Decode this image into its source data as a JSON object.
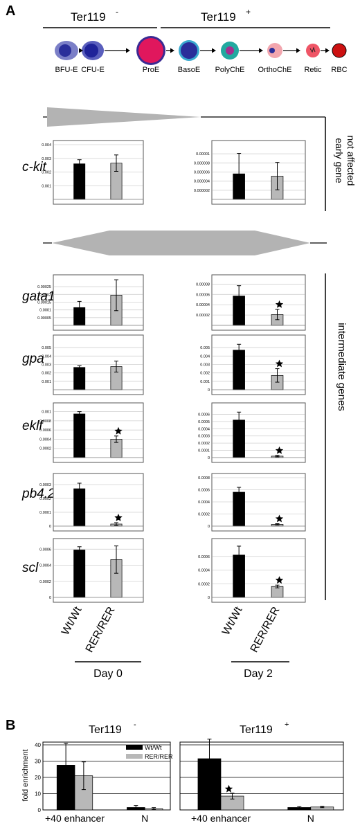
{
  "panel_a": {
    "label": "A",
    "ter_neg": "Ter119",
    "ter_neg_sup": "-",
    "ter_pos": "Ter119",
    "ter_pos_sup": "+",
    "stages": [
      "BFU-E",
      "CFU-E",
      "ProE",
      "BasoE",
      "PolyChE",
      "OrthoChE",
      "Retic",
      "RBC"
    ],
    "right_label_early_1": "early gene",
    "right_label_early_2": "not affected",
    "right_label_intermediate": "intermediate genes",
    "day0_label": "Day 0",
    "day2_label": "Day 2",
    "x_categories": [
      "Wt/Wt",
      "RER/RER"
    ]
  },
  "panel_b": {
    "label": "B",
    "ylabel": "fold enrichment",
    "left_title": "Ter119",
    "left_title_sup": "-",
    "right_title": "Ter119",
    "right_title_sup": "+",
    "legend": [
      "Wt/Wt",
      "RER/RER"
    ]
  },
  "colors": {
    "wt": "#000000",
    "rer": "#b8b8b8",
    "arrow": "#b3b3b3"
  },
  "chart_data": [
    {
      "type": "bar",
      "gene": "c-kit",
      "day": "Day 0",
      "categories": [
        "Wt/Wt",
        "RER/RER"
      ],
      "values": [
        0.0026,
        0.00265
      ],
      "errors": [
        0.0003,
        0.0006
      ],
      "ylim": [
        0,
        0.004
      ],
      "ticks": [
        "0.001",
        "0.002",
        "0.003",
        "0.004"
      ],
      "star": false
    },
    {
      "type": "bar",
      "gene": "c-kit",
      "day": "Day 2",
      "categories": [
        "Wt/Wt",
        "RER/RER"
      ],
      "values": [
        5.6e-06,
        5.1e-06
      ],
      "errors": [
        4.5e-06,
        3e-06
      ],
      "ylim": [
        0,
        1.2e-05
      ],
      "ticks": [
        "0.000002",
        "0.000004",
        "0.000006",
        "0.000008",
        "0.00001"
      ],
      "star": false
    },
    {
      "type": "bar",
      "gene": "gata1",
      "day": "Day 0",
      "categories": [
        "Wt/Wt",
        "RER/RER"
      ],
      "values": [
        0.000115,
        0.000195
      ],
      "errors": [
        4e-05,
        0.0001
      ],
      "ylim": [
        0,
        0.0003
      ],
      "ticks": [
        "0.00005",
        "0.0001",
        "0.00015",
        "0.0002",
        "0.00025"
      ],
      "star": false
    },
    {
      "type": "bar",
      "gene": "gata1",
      "day": "Day 2",
      "categories": [
        "Wt/Wt",
        "RER/RER"
      ],
      "values": [
        5.7e-05,
        2.1e-05
      ],
      "errors": [
        2e-05,
        1e-05
      ],
      "ylim": [
        0,
        9e-05
      ],
      "ticks": [
        "0.00002",
        "0.00004",
        "0.00006",
        "0.00008"
      ],
      "star": true
    },
    {
      "type": "bar",
      "gene": "gpa",
      "day": "Day 0",
      "categories": [
        "Wt/Wt",
        "RER/RER"
      ],
      "values": [
        0.00265,
        0.00275
      ],
      "errors": [
        0.0002,
        0.00065
      ],
      "ylim": [
        0,
        0.006
      ],
      "ticks": [
        "0.001",
        "0.002",
        "0.003",
        "0.004",
        "0.005"
      ],
      "star": false
    },
    {
      "type": "bar",
      "gene": "gpa",
      "day": "Day 2",
      "categories": [
        "Wt/Wt",
        "RER/RER"
      ],
      "values": [
        0.0047,
        0.0017
      ],
      "errors": [
        0.0007,
        0.0008
      ],
      "ylim": [
        0,
        0.006
      ],
      "ticks": [
        "0",
        "0.001",
        "0.002",
        "0.003",
        "0.004",
        "0.005"
      ],
      "star": true
    },
    {
      "type": "bar",
      "gene": "eklf",
      "day": "Day 0",
      "categories": [
        "Wt/Wt",
        "RER/RER"
      ],
      "values": [
        0.00095,
        0.0004
      ],
      "errors": [
        5e-05,
        7e-05
      ],
      "ylim": [
        0,
        0.0011
      ],
      "ticks": [
        "0.0002",
        "0.0004",
        "0.0006",
        "0.0008",
        "0.001"
      ],
      "star": true
    },
    {
      "type": "bar",
      "gene": "eklf",
      "day": "Day 2",
      "categories": [
        "Wt/Wt",
        "RER/RER"
      ],
      "values": [
        0.00052,
        2e-05
      ],
      "errors": [
        0.00011,
        1e-05
      ],
      "ylim": [
        0,
        0.0007
      ],
      "ticks": [
        "0",
        "0.0001",
        "0.0002",
        "0.0003",
        "0.0004",
        "0.0005",
        "0.0006"
      ],
      "star": true
    },
    {
      "type": "bar",
      "gene": "pb4.2",
      "day": "Day 0",
      "categories": [
        "Wt/Wt",
        "RER/RER"
      ],
      "values": [
        0.00027,
        1.5e-05
      ],
      "errors": [
        4e-05,
        1e-05
      ],
      "ylim": [
        0,
        0.00035
      ],
      "ticks": [
        "0",
        "0.0001",
        "0.0002",
        "0.0003"
      ],
      "star": true
    },
    {
      "type": "bar",
      "gene": "pb4.2",
      "day": "Day 2",
      "categories": [
        "Wt/Wt",
        "RER/RER"
      ],
      "values": [
        0.00056,
        3e-05
      ],
      "errors": [
        8e-05,
        1e-05
      ],
      "ylim": [
        0,
        0.0008
      ],
      "ticks": [
        "0",
        "0.0002",
        "0.0004",
        "0.0006",
        "0.0008"
      ],
      "star": true
    },
    {
      "type": "bar",
      "gene": "scl",
      "day": "Day 0",
      "categories": [
        "Wt/Wt",
        "RER/RER"
      ],
      "values": [
        0.00059,
        0.00047
      ],
      "errors": [
        4e-05,
        0.00017
      ],
      "ylim": [
        0,
        0.00068
      ],
      "ticks": [
        "0",
        "0.0002",
        "0.0004",
        "0.0006"
      ],
      "star": false
    },
    {
      "type": "bar",
      "gene": "scl",
      "day": "Day 2",
      "categories": [
        "Wt/Wt",
        "RER/RER"
      ],
      "values": [
        0.00062,
        0.00016
      ],
      "errors": [
        0.00013,
        2e-05
      ],
      "ylim": [
        0,
        0.0008
      ],
      "ticks": [
        "0",
        "0.0002",
        "0.0004",
        "0.0006"
      ],
      "star": true
    },
    {
      "type": "bar",
      "panel": "B",
      "title": "Ter119-",
      "categories": [
        "+40 enhancer",
        "N"
      ],
      "series": [
        {
          "name": "Wt/Wt",
          "values": [
            27.5,
            1.5
          ],
          "errors": [
            13.5,
            1.2
          ]
        },
        {
          "name": "RER/RER",
          "values": [
            21,
            0.8
          ],
          "errors": [
            8.5,
            0.6
          ]
        }
      ],
      "ylim": [
        0,
        40
      ],
      "ticks": [
        "0",
        "10",
        "20",
        "30",
        "40"
      ],
      "ylabel": "fold enrichment",
      "stars": []
    },
    {
      "type": "bar",
      "panel": "B",
      "title": "Ter119+",
      "categories": [
        "+40 enhancer",
        "N"
      ],
      "series": [
        {
          "name": "Wt/Wt",
          "values": [
            31.5,
            1.5
          ],
          "errors": [
            12,
            0.5
          ]
        },
        {
          "name": "RER/RER",
          "values": [
            8.5,
            1.8
          ],
          "errors": [
            1.8,
            0.4
          ]
        }
      ],
      "ylim": [
        0,
        40
      ],
      "ticks": [],
      "stars": [
        [
          0,
          1
        ]
      ]
    }
  ]
}
